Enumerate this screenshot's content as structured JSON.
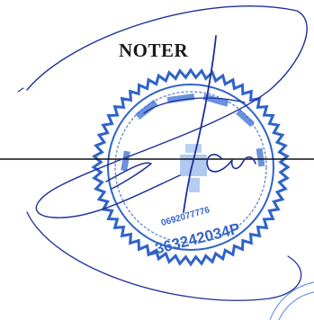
{
  "document": {
    "heading": "NOTER",
    "stamp": {
      "line_1": "0692077776",
      "line_2": "L363242034P",
      "ink_color": "#2f63c9"
    },
    "signature_ink_color": "#1c2f9a",
    "rule_color": "#111111"
  }
}
